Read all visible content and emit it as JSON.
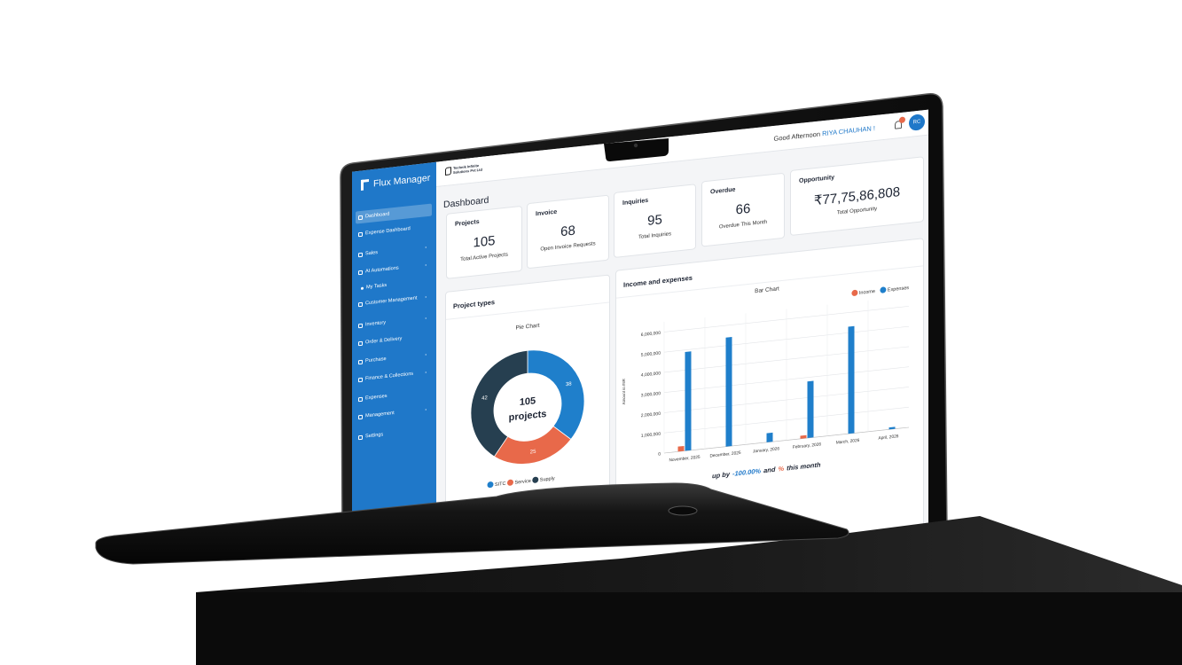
{
  "header": {
    "logo": "Flux Manager",
    "company": "Technik Infinite Solutions Pvt Ltd",
    "greeting": "Good Afternoon",
    "user": "RIYA CHAUHAN !",
    "avatar": "RC"
  },
  "sidebar": {
    "items": [
      "Dashboard",
      "Expense Dashboard",
      "Sales",
      "AI Automations",
      "My Tasks",
      "Customer Management",
      "Inventory",
      "Order & Delivery",
      "Purchase",
      "Finance & Collections",
      "Expenses",
      "Management",
      "Settings"
    ]
  },
  "page_title": "Dashboard",
  "cards": [
    {
      "title": "Projects",
      "value": 105,
      "caption": "Total Active Projects"
    },
    {
      "title": "Invoice",
      "value": 68,
      "caption": "Open Invoice Requests"
    },
    {
      "title": "Inquiries",
      "value": 95,
      "caption": "Total Inquiries"
    },
    {
      "title": "Overdue",
      "value": 66,
      "caption": "Overdue This Month"
    },
    {
      "title": "Opportunity",
      "value": "₹77,75,86,808",
      "caption": "Total Opportunity"
    }
  ],
  "panels": {
    "project_types": "Project types",
    "income_expenses": "Income and expenses"
  },
  "footer": [
    "up by",
    "-100.00%",
    "and",
    "%",
    "this month"
  ],
  "chart_data": [
    {
      "type": "pie",
      "title": "Pie Chart",
      "center_value": 105,
      "center_label": "projects",
      "categories": [
        "SITC",
        "Service",
        "Supply"
      ],
      "values": [
        38,
        25,
        42
      ],
      "colors": [
        "#1f7fcb",
        "#e8694a",
        "#263f50"
      ]
    },
    {
      "type": "bar",
      "title": "Bar Chart",
      "y_label": "Amount in INR",
      "categories": [
        "November, 2025",
        "December, 2025",
        "January, 2026",
        "February, 2026",
        "March, 2026",
        "April, 2026"
      ],
      "series": [
        {
          "name": "Income",
          "color": "#e8694a",
          "values": [
            250000,
            0,
            0,
            150000,
            0,
            0
          ]
        },
        {
          "name": "Expenses",
          "color": "#1f7fcb",
          "values": [
            4900000,
            5400000,
            450000,
            2800000,
            5300000,
            100000
          ]
        }
      ],
      "ylim": [
        0,
        6500000
      ],
      "yticks": [
        0,
        {
          "value": 1000000,
          "label": "1,000,000"
        },
        {
          "value": 2000000,
          "label": "2,000,000"
        },
        {
          "value": 3000000,
          "label": "3,000,000"
        },
        {
          "value": 4000000,
          "label": "4,000,000"
        },
        {
          "value": 5000000,
          "label": "5,000,000"
        },
        {
          "value": 6000000,
          "label": "6,000,000"
        }
      ],
      "grid": true,
      "legend": "top-right"
    }
  ]
}
